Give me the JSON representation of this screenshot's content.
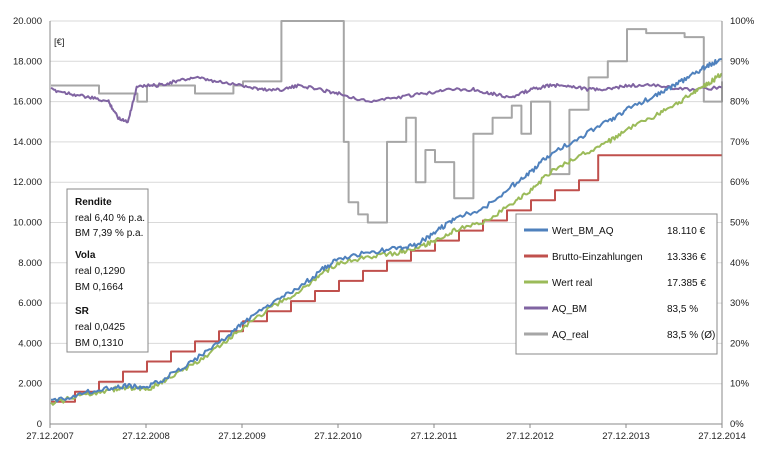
{
  "chart_data": {
    "type": "line",
    "unit_label": "[€]",
    "y_left": {
      "min": 0,
      "max": 20000,
      "step": 2000,
      "tick_labels": [
        "0",
        "2.000",
        "4.000",
        "6.000",
        "8.000",
        "10.000",
        "12.000",
        "14.000",
        "16.000",
        "18.000",
        "20.000"
      ]
    },
    "y_right": {
      "min": 0,
      "max": 100,
      "step": 10,
      "tick_labels": [
        "0%",
        "10%",
        "20%",
        "30%",
        "40%",
        "50%",
        "60%",
        "70%",
        "80%",
        "90%",
        "100%"
      ]
    },
    "x_tick_labels": [
      "27.12.2007",
      "27.12.2008",
      "27.12.2009",
      "27.12.2010",
      "27.12.2011",
      "27.12.2012",
      "27.12.2013",
      "27.12.2014"
    ],
    "x_range": [
      2007.99,
      2014.99
    ],
    "grid": true,
    "legend_position": "lower-right",
    "series": [
      {
        "name": "Wert_BM_AQ",
        "axis": "left",
        "color": "#4f81bd",
        "value_label": "18.110 €",
        "x": [
          2008.0,
          2008.3,
          2008.6,
          2008.8,
          2009.0,
          2009.2,
          2009.5,
          2009.8,
          2010.0,
          2010.3,
          2010.6,
          2010.8,
          2011.0,
          2011.3,
          2011.6,
          2011.8,
          2012.0,
          2012.2,
          2012.5,
          2012.8,
          2013.0,
          2013.2,
          2013.5,
          2013.8,
          2014.0,
          2014.3,
          2014.5,
          2014.7,
          2014.85,
          2014.99
        ],
        "y": [
          1100,
          1500,
          1800,
          1900,
          1800,
          2300,
          3200,
          4200,
          5000,
          6000,
          6800,
          7600,
          8200,
          8500,
          8700,
          8900,
          9500,
          10200,
          10700,
          11800,
          12500,
          13400,
          14200,
          15000,
          15600,
          16300,
          16800,
          17400,
          17800,
          18110
        ]
      },
      {
        "name": "Brutto-Einzahlungen",
        "axis": "left",
        "color": "#c0504d",
        "value_label": "13.336 €",
        "step": true,
        "x": [
          2008.0,
          2008.25,
          2008.5,
          2008.75,
          2009.0,
          2009.25,
          2009.5,
          2009.75,
          2010.0,
          2010.25,
          2010.5,
          2010.75,
          2011.0,
          2011.25,
          2011.5,
          2011.75,
          2012.0,
          2012.25,
          2012.5,
          2012.75,
          2013.0,
          2013.25,
          2013.5,
          2013.7,
          2014.99
        ],
        "y": [
          1100,
          1600,
          2100,
          2600,
          3100,
          3600,
          4100,
          4600,
          5100,
          5600,
          6100,
          6600,
          7100,
          7600,
          8100,
          8600,
          9100,
          9600,
          10100,
          10600,
          11100,
          11600,
          12100,
          13336,
          13336
        ]
      },
      {
        "name": "Wert real",
        "axis": "left",
        "color": "#9bbb59",
        "value_label": "17.385 €",
        "x": [
          2008.0,
          2008.3,
          2008.6,
          2008.8,
          2009.0,
          2009.2,
          2009.5,
          2009.8,
          2010.0,
          2010.3,
          2010.6,
          2010.8,
          2011.0,
          2011.3,
          2011.6,
          2011.8,
          2012.0,
          2012.2,
          2012.5,
          2012.8,
          2013.0,
          2013.2,
          2013.5,
          2013.8,
          2014.0,
          2014.3,
          2014.5,
          2014.7,
          2014.85,
          2014.99
        ],
        "y": [
          1000,
          1400,
          1700,
          1800,
          1700,
          2200,
          3000,
          4000,
          4800,
          5800,
          6600,
          7400,
          8000,
          8300,
          8500,
          8700,
          9100,
          9600,
          10000,
          10900,
          11600,
          12500,
          13300,
          14000,
          14600,
          15300,
          15800,
          16500,
          16900,
          17385
        ]
      },
      {
        "name": "AQ_BM",
        "axis": "right",
        "color": "#8064a2",
        "value_label": "83,5 %",
        "x": [
          2008.0,
          2008.2,
          2008.4,
          2008.6,
          2008.7,
          2008.8,
          2008.9,
          2009.1,
          2009.3,
          2009.5,
          2009.7,
          2010.0,
          2010.2,
          2010.4,
          2010.6,
          2010.8,
          2011.0,
          2011.3,
          2011.6,
          2011.9,
          2012.1,
          2012.4,
          2012.6,
          2012.8,
          2013.0,
          2013.2,
          2013.4,
          2013.6,
          2013.8,
          2014.0,
          2014.3,
          2014.6,
          2014.99
        ],
        "y": [
          83,
          82,
          81,
          80,
          76,
          75,
          84,
          84,
          85,
          86,
          85,
          84,
          83,
          83,
          84,
          83,
          82,
          80,
          81,
          82,
          83,
          83,
          82,
          81,
          83,
          84,
          84,
          83,
          83,
          84,
          84,
          83,
          83.5
        ]
      },
      {
        "name": "AQ_real",
        "axis": "right",
        "color": "#a6a6a6",
        "value_label": "83,5 % (Ø)",
        "step": true,
        "x": [
          2008.0,
          2008.5,
          2008.9,
          2009.0,
          2009.5,
          2009.9,
          2010.0,
          2010.4,
          2010.9,
          2011.0,
          2011.05,
          2011.1,
          2011.2,
          2011.3,
          2011.5,
          2011.7,
          2011.8,
          2011.9,
          2012.0,
          2012.2,
          2012.4,
          2012.6,
          2012.8,
          2012.9,
          2013.0,
          2013.2,
          2013.4,
          2013.6,
          2013.8,
          2014.0,
          2014.2,
          2014.4,
          2014.6,
          2014.8,
          2014.99
        ],
        "y": [
          84,
          82,
          80,
          84,
          82,
          84,
          85,
          100,
          100,
          100,
          70,
          55,
          52,
          50,
          70,
          76,
          60,
          68,
          65,
          56,
          72,
          76,
          79,
          72,
          80,
          62,
          78,
          86,
          90,
          98,
          97,
          97,
          96,
          80,
          85
        ]
      }
    ],
    "annotation": {
      "sections": [
        {
          "heading": "Rendite",
          "lines": [
            "real 6,40 % p.a.",
            "BM 7,39 % p.a."
          ]
        },
        {
          "heading": "Vola",
          "lines": [
            "real 0,1290",
            "BM 0,1664"
          ]
        },
        {
          "heading": "SR",
          "lines": [
            "real 0,0425",
            "BM 0,1310"
          ]
        }
      ]
    }
  }
}
